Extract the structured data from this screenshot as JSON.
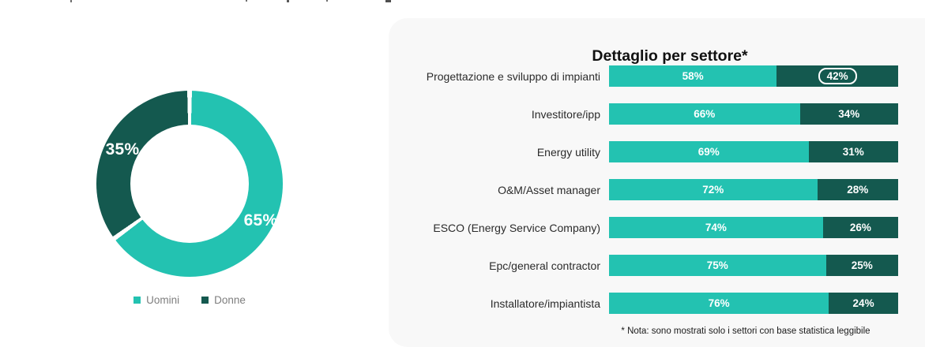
{
  "donut": {
    "slices": [
      {
        "label": "Uomini",
        "value": 65,
        "display": "65%",
        "color": "#23c2b1"
      },
      {
        "label": "Donne",
        "value": 35,
        "display": "35%",
        "color": "#14594f"
      }
    ],
    "legend": [
      "Uomini",
      "Donne"
    ]
  },
  "sectors": {
    "title": "Dettaglio per settore*",
    "footnote": "* Nota: sono mostrati solo i settori con base statistica leggibile",
    "rows": [
      {
        "label": "Progettazione e sviluppo di impianti",
        "men": 58,
        "women": 42,
        "men_label": "58%",
        "women_label": "42%",
        "women_boxed": true
      },
      {
        "label": "Investitore/ipp",
        "men": 66,
        "women": 34,
        "men_label": "66%",
        "women_label": "34%",
        "women_boxed": false
      },
      {
        "label": "Energy utility",
        "men": 69,
        "women": 31,
        "men_label": "69%",
        "women_label": "31%",
        "women_boxed": false
      },
      {
        "label": "O&M/Asset manager",
        "men": 72,
        "women": 28,
        "men_label": "72%",
        "women_label": "28%",
        "women_boxed": false
      },
      {
        "label": "ESCO (Energy Service Company)",
        "men": 74,
        "women": 26,
        "men_label": "74%",
        "women_label": "26%",
        "women_boxed": false
      },
      {
        "label": "Epc/general contractor",
        "men": 75,
        "women": 25,
        "men_label": "75%",
        "women_label": "25%",
        "women_boxed": false
      },
      {
        "label": "Installatore/impiantista",
        "men": 76,
        "women": 24,
        "men_label": "76%",
        "women_label": "24%",
        "women_boxed": false
      }
    ]
  },
  "colors": {
    "men": "#23c2b1",
    "women": "#14594f",
    "card_bg": "#f8f8f8"
  },
  "chart_data": [
    {
      "type": "pie",
      "subtype": "donut",
      "categories": [
        "Uomini",
        "Donne"
      ],
      "values": [
        65,
        35
      ],
      "data_labels": [
        "65%",
        "35%"
      ],
      "colors": [
        "#23c2b1",
        "#14594f"
      ],
      "legend_position": "bottom",
      "start_angle": "12 o'clock, clockwise",
      "title": ""
    },
    {
      "type": "bar",
      "orientation": "horizontal",
      "stacked": true,
      "title": "Dettaglio per settore*",
      "categories": [
        "Progettazione e sviluppo di impianti",
        "Investitore/ipp",
        "Energy utility",
        "O&M/Asset manager",
        "ESCO (Energy Service Company)",
        "Epc/general contractor",
        "Installatore/impiantista"
      ],
      "series": [
        {
          "name": "Uomini",
          "color": "#23c2b1",
          "values": [
            58,
            66,
            69,
            72,
            74,
            75,
            76
          ]
        },
        {
          "name": "Donne",
          "color": "#14594f",
          "values": [
            42,
            34,
            31,
            28,
            26,
            25,
            24
          ]
        }
      ],
      "xlim": [
        0,
        100
      ],
      "grid": false,
      "annotations": [
        "42% value of first row is highlighted with a white rounded outline"
      ],
      "footnote": "* Nota: sono mostrati solo i settori con base statistica leggibile"
    }
  ]
}
